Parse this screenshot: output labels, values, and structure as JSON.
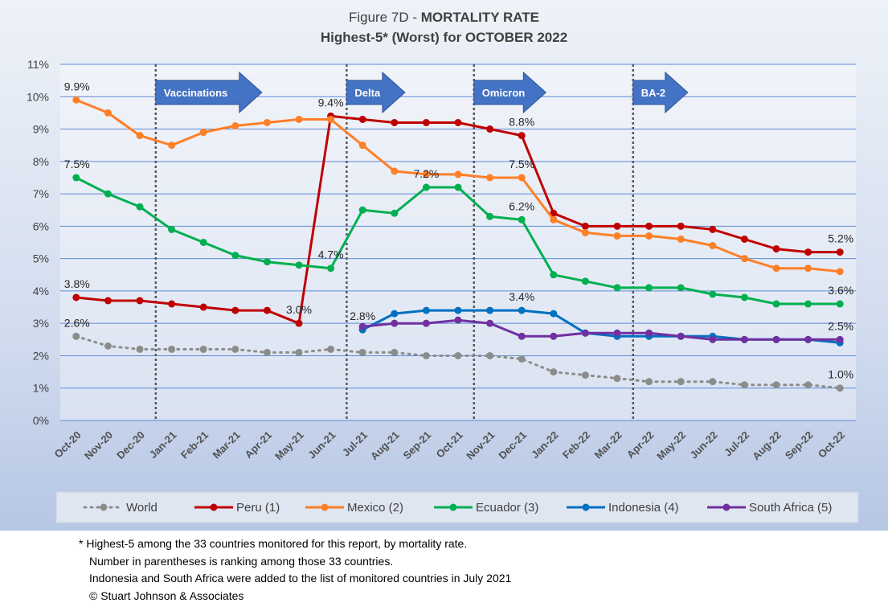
{
  "chart_data": {
    "type": "line",
    "title_prefix": "Figure 7D  - ",
    "title_bold": "MORTALITY RATE",
    "subtitle": "Highest-5* (Worst) for OCTOBER 2022",
    "categories": [
      "Oct-20",
      "Nov-20",
      "Dec-20",
      "Jan-21",
      "Feb-21",
      "Mar-21",
      "Apr-21",
      "May-21",
      "Jun-21",
      "Jul-21",
      "Aug-21",
      "Sep-21",
      "Oct-21",
      "Nov-21",
      "Dec-21",
      "Jan-22",
      "Feb-22",
      "Mar-22",
      "Apr-22",
      "May-22",
      "Jun-22",
      "Jul-22",
      "Aug-22",
      "Sep-22",
      "Oct-22"
    ],
    "ylim": [
      0,
      11
    ],
    "y_ticks": [
      "0%",
      "1%",
      "2%",
      "3%",
      "4%",
      "5%",
      "6%",
      "7%",
      "8%",
      "9%",
      "10%",
      "11%"
    ],
    "grid": true,
    "legend_position": "bottom",
    "series": [
      {
        "name": "World",
        "color": "#8c8c8c",
        "dashed": true,
        "values": [
          2.6,
          2.3,
          2.2,
          2.2,
          2.2,
          2.2,
          2.1,
          2.1,
          2.2,
          2.1,
          2.1,
          2.0,
          2.0,
          2.0,
          1.9,
          1.5,
          1.4,
          1.3,
          1.2,
          1.2,
          1.2,
          1.1,
          1.1,
          1.1,
          1.0
        ]
      },
      {
        "name": "Peru (1)",
        "color": "#c00000",
        "values": [
          3.8,
          3.7,
          3.7,
          3.6,
          3.5,
          3.4,
          3.4,
          3.0,
          9.4,
          9.3,
          9.2,
          9.2,
          9.2,
          9.0,
          8.8,
          6.4,
          6.0,
          6.0,
          6.0,
          6.0,
          5.9,
          5.6,
          5.3,
          5.2,
          5.2
        ]
      },
      {
        "name": "Mexico (2)",
        "color": "#ff7f27",
        "values": [
          9.9,
          9.5,
          8.8,
          8.5,
          8.9,
          9.1,
          9.2,
          9.3,
          9.3,
          8.5,
          7.7,
          7.6,
          7.6,
          7.5,
          7.5,
          6.2,
          5.8,
          5.7,
          5.7,
          5.6,
          5.4,
          5.0,
          4.7,
          4.7,
          4.6
        ]
      },
      {
        "name": "Ecuador (3)",
        "color": "#00b050",
        "values": [
          7.5,
          7.0,
          6.6,
          5.9,
          5.5,
          5.1,
          4.9,
          4.8,
          4.7,
          6.5,
          6.4,
          7.2,
          7.2,
          6.3,
          6.2,
          4.5,
          4.3,
          4.1,
          4.1,
          4.1,
          3.9,
          3.8,
          3.6,
          3.6,
          3.6
        ]
      },
      {
        "name": "Indonesia (4)",
        "color": "#0070c0",
        "values": [
          null,
          null,
          null,
          null,
          null,
          null,
          null,
          null,
          null,
          2.8,
          3.3,
          3.4,
          3.4,
          3.4,
          3.4,
          3.3,
          2.7,
          2.6,
          2.6,
          2.6,
          2.6,
          2.5,
          2.5,
          2.5,
          2.4
        ]
      },
      {
        "name": "South Africa (5)",
        "color": "#7030a0",
        "values": [
          null,
          null,
          null,
          null,
          null,
          null,
          null,
          null,
          null,
          2.9,
          3.0,
          3.0,
          3.1,
          3.0,
          2.6,
          2.6,
          2.7,
          2.7,
          2.7,
          2.6,
          2.5,
          2.5,
          2.5,
          2.5,
          2.5
        ]
      }
    ],
    "data_labels": [
      {
        "text": "9.9%",
        "x": "Oct-20",
        "y": 9.9
      },
      {
        "text": "7.5%",
        "x": "Oct-20",
        "y": 7.5
      },
      {
        "text": "3.8%",
        "x": "Oct-20",
        "y": 3.8
      },
      {
        "text": "2.6%",
        "x": "Oct-20",
        "y": 2.6
      },
      {
        "text": "9.4%",
        "x": "Jun-21",
        "y": 9.4
      },
      {
        "text": "4.7%",
        "x": "Jun-21",
        "y": 4.7
      },
      {
        "text": "3.0%",
        "x": "May-21",
        "y": 3.0
      },
      {
        "text": "2.8%",
        "x": "Jul-21",
        "y": 2.8
      },
      {
        "text": "7.2%",
        "x": "Sep-21",
        "y": 7.2
      },
      {
        "text": "8.8%",
        "x": "Dec-21",
        "y": 8.8
      },
      {
        "text": "7.5%",
        "x": "Dec-21",
        "y": 7.5
      },
      {
        "text": "6.2%",
        "x": "Dec-21",
        "y": 6.2
      },
      {
        "text": "3.4%",
        "x": "Dec-21",
        "y": 3.4
      },
      {
        "text": "5.2%",
        "x": "Oct-22",
        "y": 5.2
      },
      {
        "text": "3.6%",
        "x": "Oct-22",
        "y": 3.6
      },
      {
        "text": "2.5%",
        "x": "Oct-22",
        "y": 2.5
      },
      {
        "text": "1.0%",
        "x": "Oct-22",
        "y": 1.0
      }
    ],
    "annotations": [
      {
        "text": "Vaccinations",
        "at": "Jan-21"
      },
      {
        "text": "Delta",
        "at": "Jul-21"
      },
      {
        "text": "Omicron",
        "at": "Nov-21"
      },
      {
        "text": "BA-2",
        "at": "Apr-22"
      }
    ]
  },
  "footnotes": [
    "* Highest-5 among the 33 countries monitored for this report, by mortality rate.",
    "Number in parentheses is ranking among those 33 countries.",
    "Indonesia and South Africa were added to the list of monitored countries in July 2021",
    "© Stuart Johnson & Associates"
  ]
}
